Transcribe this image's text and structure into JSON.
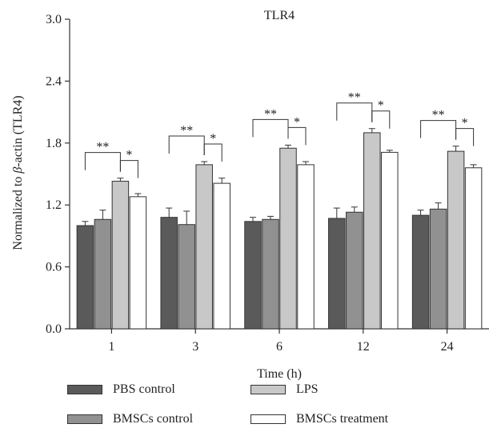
{
  "chart_data": {
    "type": "bar",
    "title": "TLR4",
    "xlabel": "Time (h)",
    "ylabel_prefix": "Normalized to ",
    "ylabel_greek": "β",
    "ylabel_suffix": "-actin (TLR4)",
    "categories": [
      "1",
      "3",
      "6",
      "12",
      "24"
    ],
    "ylim": [
      0,
      3.0
    ],
    "yticks": [
      "0.0",
      "0.6",
      "1.2",
      "1.8",
      "2.4",
      "3.0"
    ],
    "series": [
      {
        "name": "PBS control",
        "color": "#5a5a5a",
        "values": [
          1.0,
          1.08,
          1.04,
          1.07,
          1.1
        ],
        "errors": [
          0.04,
          0.09,
          0.04,
          0.1,
          0.05
        ]
      },
      {
        "name": "BMSCs control",
        "color": "#919191",
        "values": [
          1.06,
          1.01,
          1.06,
          1.13,
          1.16
        ],
        "errors": [
          0.09,
          0.13,
          0.03,
          0.05,
          0.06
        ]
      },
      {
        "name": "LPS",
        "color": "#c8c8c8",
        "values": [
          1.43,
          1.59,
          1.75,
          1.9,
          1.72
        ],
        "errors": [
          0.03,
          0.03,
          0.03,
          0.04,
          0.05
        ]
      },
      {
        "name": "BMSCs treatment",
        "color": "#ffffff",
        "values": [
          1.28,
          1.41,
          1.59,
          1.71,
          1.56
        ],
        "errors": [
          0.03,
          0.05,
          0.03,
          0.02,
          0.03
        ]
      }
    ],
    "annotations": [
      {
        "text": "**",
        "from_series": 0,
        "to_series": 2
      },
      {
        "text": "*",
        "from_series": 2,
        "to_series": 3
      }
    ],
    "legend_position": "bottom"
  }
}
